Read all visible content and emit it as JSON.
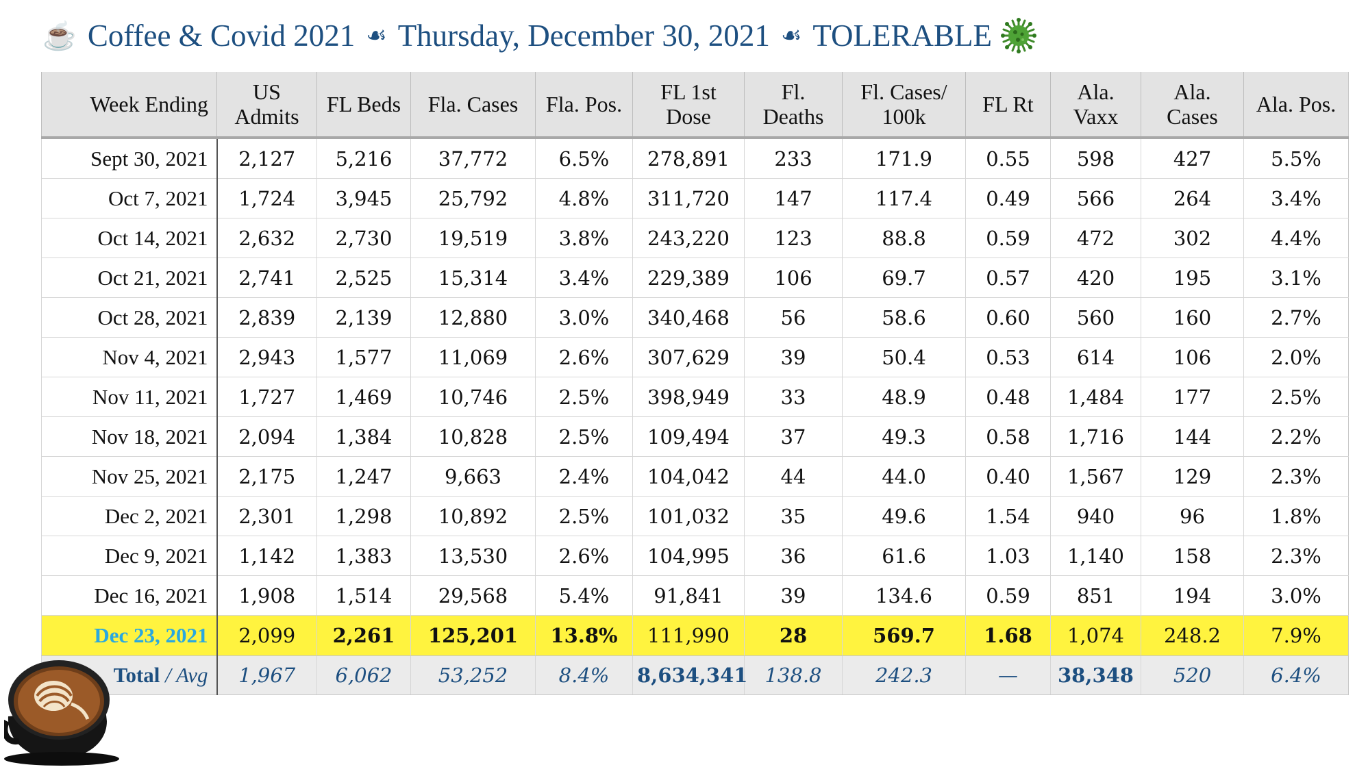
{
  "title": {
    "cup_icon": "☕",
    "part1": "Coffee & Covid 2021",
    "separator": "☙",
    "part2": "Thursday, December 30, 2021",
    "part3": "TOLERABLE"
  },
  "table": {
    "headers": [
      [
        "Week Ending"
      ],
      [
        "US",
        "Admits"
      ],
      [
        "FL Beds"
      ],
      [
        "Fla. Cases"
      ],
      [
        "Fla. Pos."
      ],
      [
        "FL 1st",
        "Dose"
      ],
      [
        "Fl.",
        "Deaths"
      ],
      [
        "Fl. Cases/",
        "100k"
      ],
      [
        "FL Rt"
      ],
      [
        "Ala.",
        "Vaxx"
      ],
      [
        "Ala.",
        "Cases"
      ],
      [
        "Ala. Pos."
      ]
    ],
    "rows": [
      [
        "Sept 30, 2021",
        "2,127",
        "5,216",
        "37,772",
        "6.5%",
        "278,891",
        "233",
        "171.9",
        "0.55",
        "598",
        "427",
        "5.5%"
      ],
      [
        "Oct 7, 2021",
        "1,724",
        "3,945",
        "25,792",
        "4.8%",
        "311,720",
        "147",
        "117.4",
        "0.49",
        "566",
        "264",
        "3.4%"
      ],
      [
        "Oct 14, 2021",
        "2,632",
        "2,730",
        "19,519",
        "3.8%",
        "243,220",
        "123",
        "88.8",
        "0.59",
        "472",
        "302",
        "4.4%"
      ],
      [
        "Oct 21, 2021",
        "2,741",
        "2,525",
        "15,314",
        "3.4%",
        "229,389",
        "106",
        "69.7",
        "0.57",
        "420",
        "195",
        "3.1%"
      ],
      [
        "Oct 28, 2021",
        "2,839",
        "2,139",
        "12,880",
        "3.0%",
        "340,468",
        "56",
        "58.6",
        "0.60",
        "560",
        "160",
        "2.7%"
      ],
      [
        "Nov 4, 2021",
        "2,943",
        "1,577",
        "11,069",
        "2.6%",
        "307,629",
        "39",
        "50.4",
        "0.53",
        "614",
        "106",
        "2.0%"
      ],
      [
        "Nov 11, 2021",
        "1,727",
        "1,469",
        "10,746",
        "2.5%",
        "398,949",
        "33",
        "48.9",
        "0.48",
        "1,484",
        "177",
        "2.5%"
      ],
      [
        "Nov 18, 2021",
        "2,094",
        "1,384",
        "10,828",
        "2.5%",
        "109,494",
        "37",
        "49.3",
        "0.58",
        "1,716",
        "144",
        "2.2%"
      ],
      [
        "Nov 25, 2021",
        "2,175",
        "1,247",
        "9,663",
        "2.4%",
        "104,042",
        "44",
        "44.0",
        "0.40",
        "1,567",
        "129",
        "2.3%"
      ],
      [
        "Dec 2, 2021",
        "2,301",
        "1,298",
        "10,892",
        "2.5%",
        "101,032",
        "35",
        "49.6",
        "1.54",
        "940",
        "96",
        "1.8%"
      ],
      [
        "Dec 9, 2021",
        "1,142",
        "1,383",
        "13,530",
        "2.6%",
        "104,995",
        "36",
        "61.6",
        "1.03",
        "1,140",
        "158",
        "2.3%"
      ],
      [
        "Dec 16, 2021",
        "1,908",
        "1,514",
        "29,568",
        "5.4%",
        "91,841",
        "39",
        "134.6",
        "0.59",
        "851",
        "194",
        "3.0%"
      ]
    ],
    "highlight_row": [
      "Dec 23, 2021",
      "2,099",
      "2,261",
      "125,201",
      "13.8%",
      "111,990",
      "28",
      "569.7",
      "1.68",
      "1,074",
      "248.2",
      "7.9%"
    ],
    "highlight_bold": [
      false,
      false,
      true,
      true,
      true,
      false,
      true,
      true,
      true,
      false,
      false,
      false
    ],
    "total_label": "Total",
    "total_sep": " / ",
    "total_avg": "Avg",
    "total_row": [
      "1,967",
      "6,062",
      "53,252",
      "8.4%",
      "8,634,341",
      "138.8",
      "242.3",
      "—",
      "38,348",
      "520",
      "6.4%"
    ],
    "total_bold": [
      false,
      false,
      false,
      false,
      true,
      false,
      false,
      false,
      true,
      false,
      false
    ]
  },
  "colors": {
    "title": "#1d4f80",
    "header_bg": "#e3e3e3",
    "highlight_bg": "#fff33f",
    "highlight_date": "#29a8e0",
    "total_bg": "#ebebeb",
    "total_text": "#1d4f80"
  },
  "icons": [
    "coffee-cup-icon",
    "fleuron-separator-icon",
    "virus-icon",
    "latte-art-cup-image"
  ]
}
